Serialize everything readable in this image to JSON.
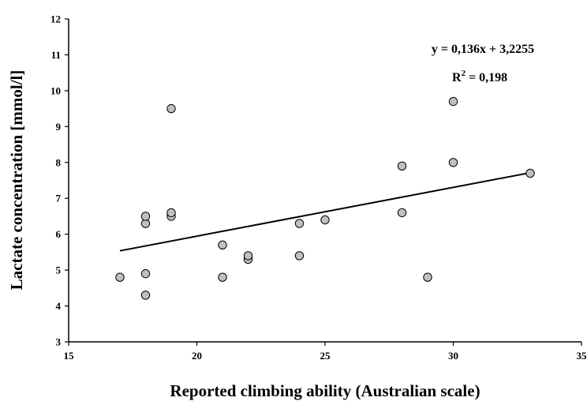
{
  "chart_data": {
    "type": "scatter",
    "xlabel": "Reported climbing ability (Australian scale)",
    "ylabel": "Lactate concentration [mmol/l]",
    "xlim": [
      15,
      35
    ],
    "ylim": [
      3,
      12
    ],
    "xticks": [
      "15",
      "20",
      "25",
      "30",
      "35"
    ],
    "yticks": [
      "3",
      "4",
      "5",
      "6",
      "7",
      "8",
      "9",
      "10",
      "11",
      "12"
    ],
    "grid": false,
    "points": [
      {
        "x": 17,
        "y": 4.8
      },
      {
        "x": 18,
        "y": 4.3
      },
      {
        "x": 18,
        "y": 4.9
      },
      {
        "x": 18,
        "y": 6.3
      },
      {
        "x": 18,
        "y": 6.5
      },
      {
        "x": 19,
        "y": 6.5
      },
      {
        "x": 19,
        "y": 6.6
      },
      {
        "x": 19,
        "y": 9.5
      },
      {
        "x": 21,
        "y": 4.8
      },
      {
        "x": 21,
        "y": 5.7
      },
      {
        "x": 22,
        "y": 5.3
      },
      {
        "x": 22,
        "y": 5.4
      },
      {
        "x": 24,
        "y": 5.4
      },
      {
        "x": 24,
        "y": 6.3
      },
      {
        "x": 25,
        "y": 6.4
      },
      {
        "x": 28,
        "y": 6.6
      },
      {
        "x": 28,
        "y": 7.9
      },
      {
        "x": 29,
        "y": 4.8
      },
      {
        "x": 30,
        "y": 8.0
      },
      {
        "x": 30,
        "y": 9.7
      },
      {
        "x": 33,
        "y": 7.7
      }
    ],
    "trendline": {
      "slope": 0.136,
      "intercept": 3.2255,
      "x_start": 17,
      "x_end": 33
    },
    "equation_text": "y = 0,136x + 3,2255",
    "r2_prefix": "R",
    "r2_superscript": "2",
    "r2_value_text": " = 0,198",
    "marker_fill": "#c0c0c0",
    "marker_stroke": "#000000",
    "line_color": "#000000"
  }
}
